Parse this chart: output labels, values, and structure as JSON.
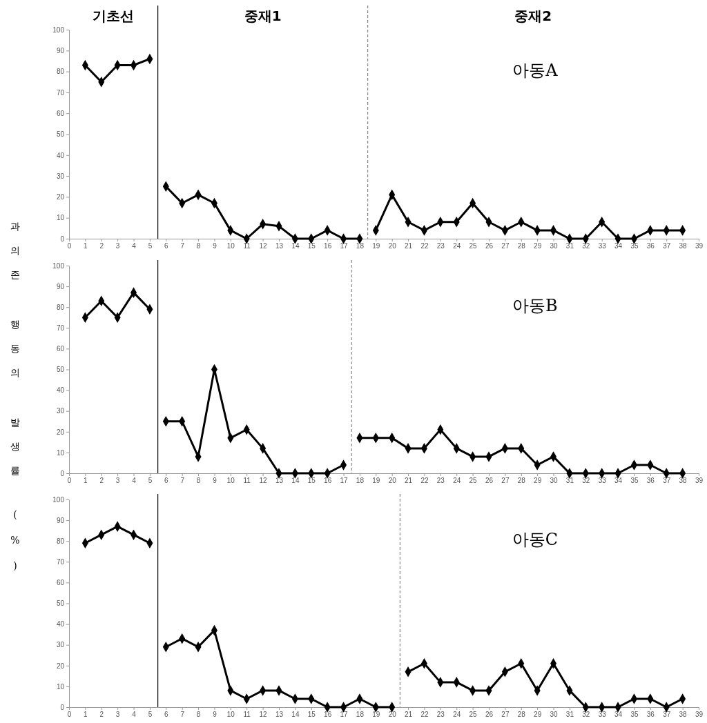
{
  "chart_data": [
    {
      "type": "line",
      "title": "아동A",
      "annotations": [
        "기초선",
        "중재1",
        "중재2"
      ],
      "xlim": [
        0,
        39
      ],
      "xticks": [
        0,
        1,
        2,
        3,
        4,
        5,
        6,
        7,
        8,
        9,
        10,
        11,
        12,
        13,
        14,
        15,
        16,
        17,
        18,
        19,
        20,
        21,
        22,
        23,
        24,
        25,
        26,
        27,
        28,
        29,
        30,
        31,
        32,
        33,
        34,
        35,
        36,
        37,
        38,
        39
      ],
      "ylim": [
        0,
        100
      ],
      "yticks": [
        0,
        10,
        20,
        30,
        40,
        50,
        60,
        70,
        80,
        90,
        100
      ],
      "marker": "diamond",
      "line_style": "solid",
      "series": [
        {
          "color": "#000000",
          "x": [
            1,
            2,
            3,
            4,
            5
          ],
          "values": [
            83,
            75,
            83,
            83,
            86
          ]
        },
        {
          "color": "#000000",
          "x": [
            6,
            7,
            8,
            9,
            10,
            11,
            12,
            13,
            14,
            15,
            16,
            17,
            18
          ],
          "values": [
            25,
            17,
            21,
            17,
            4,
            0,
            7,
            6,
            0,
            0,
            4,
            0,
            0
          ]
        },
        {
          "color": "#000000",
          "x": [
            19,
            20,
            21,
            22,
            23,
            24,
            25,
            26,
            27,
            28,
            29,
            30,
            31,
            32,
            33,
            34,
            35,
            36,
            37,
            38
          ],
          "values": [
            4,
            21,
            8,
            4,
            8,
            8,
            17,
            8,
            4,
            8,
            4,
            4,
            0,
            0,
            8,
            0,
            0,
            4,
            4,
            4
          ]
        }
      ],
      "ref_lines": [
        {
          "axis": "x",
          "value": 5.5,
          "color": "#000000",
          "line_style": "solid"
        },
        {
          "axis": "x",
          "value": 18.5,
          "color": "#888888",
          "line_style": "dashed"
        }
      ]
    },
    {
      "type": "line",
      "title": "아동B",
      "ylabel": "과의존 행동의 발생률 (%)",
      "xlim": [
        0,
        39
      ],
      "xticks": [
        0,
        1,
        2,
        3,
        4,
        5,
        6,
        7,
        8,
        9,
        10,
        11,
        12,
        13,
        14,
        15,
        16,
        17,
        18,
        19,
        20,
        21,
        22,
        23,
        24,
        25,
        26,
        27,
        28,
        29,
        30,
        31,
        32,
        33,
        34,
        35,
        36,
        37,
        38,
        39
      ],
      "ylim": [
        0,
        100
      ],
      "yticks": [
        0,
        10,
        20,
        30,
        40,
        50,
        60,
        70,
        80,
        90,
        100
      ],
      "marker": "diamond",
      "line_style": "solid",
      "series": [
        {
          "color": "#000000",
          "x": [
            1,
            2,
            3,
            4,
            5
          ],
          "values": [
            75,
            83,
            75,
            87,
            79
          ]
        },
        {
          "color": "#000000",
          "x": [
            6,
            7,
            8,
            9,
            10,
            11,
            12,
            13,
            14,
            15,
            16,
            17
          ],
          "values": [
            25,
            25,
            8,
            50,
            17,
            21,
            12,
            0,
            0,
            0,
            0,
            4
          ]
        },
        {
          "color": "#000000",
          "x": [
            18,
            19,
            20,
            21,
            22,
            23,
            24,
            25,
            26,
            27,
            28,
            29,
            30,
            31,
            32,
            33,
            34,
            35,
            36,
            37,
            38
          ],
          "values": [
            17,
            17,
            17,
            12,
            12,
            21,
            12,
            8,
            8,
            12,
            12,
            4,
            8,
            0,
            0,
            0,
            0,
            4,
            4,
            0,
            0
          ]
        }
      ],
      "ref_lines": [
        {
          "axis": "x",
          "value": 5.5,
          "color": "#000000",
          "line_style": "solid"
        },
        {
          "axis": "x",
          "value": 17.5,
          "color": "#888888",
          "line_style": "dashed"
        }
      ]
    },
    {
      "type": "line",
      "title": "아동C",
      "xlim": [
        0,
        39
      ],
      "xticks": [
        0,
        1,
        2,
        3,
        4,
        5,
        6,
        7,
        8,
        9,
        10,
        11,
        12,
        13,
        14,
        15,
        16,
        17,
        18,
        19,
        20,
        21,
        22,
        23,
        24,
        25,
        26,
        27,
        28,
        29,
        30,
        31,
        32,
        33,
        34,
        35,
        36,
        37,
        38,
        39
      ],
      "ylim": [
        0,
        100
      ],
      "yticks": [
        0,
        10,
        20,
        30,
        40,
        50,
        60,
        70,
        80,
        90,
        100
      ],
      "marker": "diamond",
      "line_style": "solid",
      "series": [
        {
          "color": "#000000",
          "x": [
            1,
            2,
            3,
            4,
            5
          ],
          "values": [
            79,
            83,
            87,
            83,
            79
          ]
        },
        {
          "color": "#000000",
          "x": [
            6,
            7,
            8,
            9,
            10,
            11,
            12,
            13,
            14,
            15,
            16,
            17,
            18,
            19,
            20
          ],
          "values": [
            29,
            33,
            29,
            37,
            8,
            4,
            8,
            8,
            4,
            4,
            0,
            0,
            4,
            0,
            0
          ]
        },
        {
          "color": "#000000",
          "x": [
            21,
            22,
            23,
            24,
            25,
            26,
            27,
            28,
            29,
            30,
            31,
            32,
            33,
            34,
            35,
            36,
            37,
            38
          ],
          "values": [
            17,
            21,
            12,
            12,
            8,
            8,
            17,
            21,
            8,
            21,
            8,
            0,
            0,
            0,
            4,
            4,
            0,
            4
          ]
        }
      ],
      "ref_lines": [
        {
          "axis": "x",
          "value": 5.5,
          "color": "#000000",
          "line_style": "solid"
        },
        {
          "axis": "x",
          "value": 20.5,
          "color": "#888888",
          "line_style": "dashed"
        }
      ]
    }
  ]
}
